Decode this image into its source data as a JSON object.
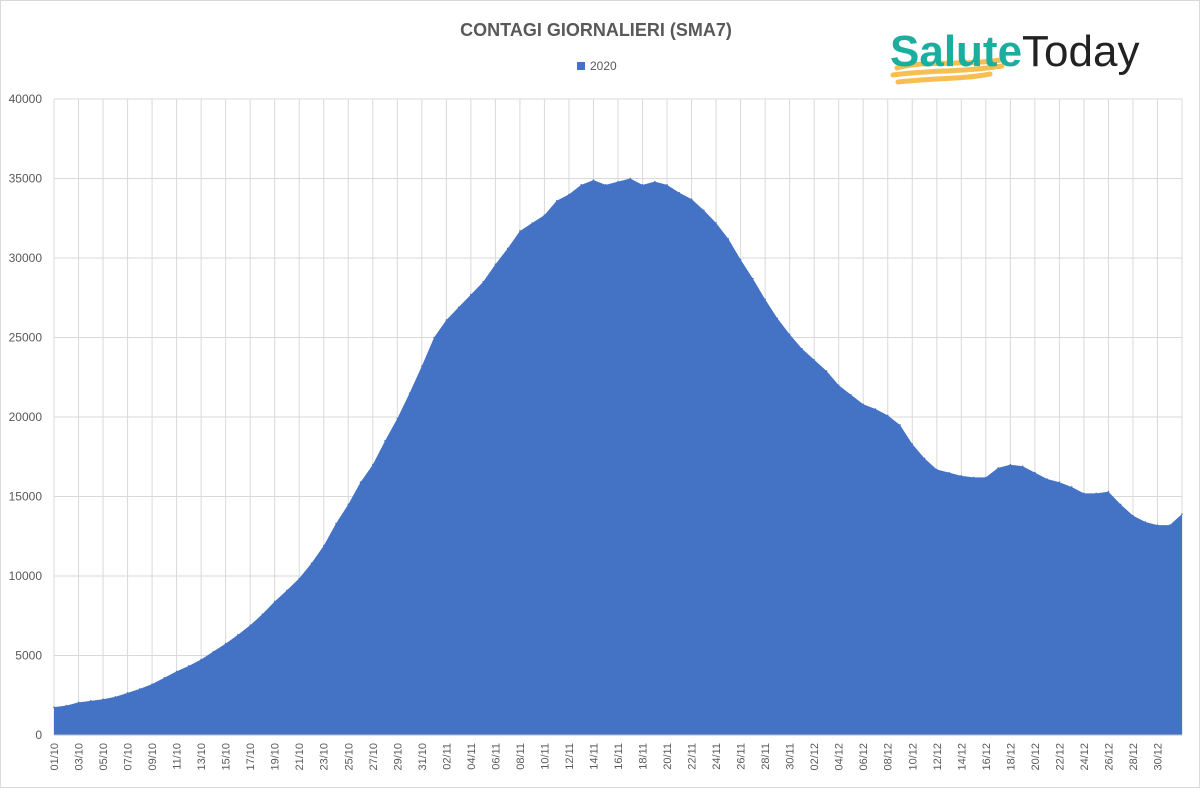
{
  "chart_data": {
    "type": "area",
    "title": "CONTAGI GIORNALIERI (SMA7)",
    "xlabel": "",
    "ylabel": "",
    "ylim": [
      0,
      40000
    ],
    "yticks": [
      0,
      5000,
      10000,
      15000,
      20000,
      25000,
      30000,
      35000,
      40000
    ],
    "grid": true,
    "legend_position": "top-center",
    "series": [
      {
        "name": "2020",
        "color": "#4472c4",
        "values": [
          1750,
          1850,
          2050,
          2150,
          2250,
          2400,
          2650,
          2900,
          3200,
          3600,
          4000,
          4350,
          4750,
          5250,
          5750,
          6300,
          6900,
          7600,
          8400,
          9100,
          9850,
          10800,
          11900,
          13300,
          14500,
          15900,
          17000,
          18500,
          19900,
          21500,
          23200,
          25000,
          26100,
          26900,
          27700,
          28500,
          29600,
          30600,
          31700,
          32200,
          32700,
          33600,
          34000,
          34600,
          34900,
          34600,
          34800,
          35000,
          34600,
          34800,
          34600,
          34100,
          33700,
          33000,
          32200,
          31200,
          29900,
          28700,
          27400,
          26200,
          25200,
          24300,
          23600,
          22900,
          22000,
          21400,
          20800,
          20500,
          20100,
          19500,
          18300,
          17400,
          16700,
          16500,
          16300,
          16200,
          16200,
          16800,
          17000,
          16900,
          16500,
          16100,
          15900,
          15600,
          15200,
          15200,
          15300,
          14500,
          13800,
          13400,
          13200,
          13200,
          13900
        ]
      }
    ],
    "x_labels": [
      "01/10",
      "03/10",
      "05/10",
      "07/10",
      "09/10",
      "11/10",
      "13/10",
      "15/10",
      "17/10",
      "19/10",
      "21/10",
      "23/10",
      "25/10",
      "27/10",
      "29/10",
      "31/10",
      "02/11",
      "04/11",
      "06/11",
      "08/11",
      "10/11",
      "12/11",
      "14/11",
      "16/11",
      "18/11",
      "20/11",
      "22/11",
      "24/11",
      "26/11",
      "28/11",
      "30/11",
      "02/12",
      "04/12",
      "06/12",
      "08/12",
      "10/12",
      "12/12",
      "14/12",
      "16/12",
      "18/12",
      "20/12",
      "22/12",
      "24/12",
      "26/12",
      "28/12",
      "30/12"
    ]
  },
  "logo": {
    "part1": "Salute",
    "part2": "Today",
    "color1": "#1aae9f",
    "color2": "#222222",
    "brush_color": "#f5b335"
  }
}
